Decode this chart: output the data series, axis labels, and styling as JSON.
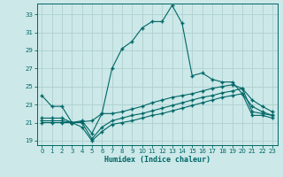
{
  "xlabel": "Humidex (Indice chaleur)",
  "bg_color": "#cce8e8",
  "grid_color": "#b0d0d0",
  "line_color": "#006666",
  "xlim": [
    -0.5,
    23.5
  ],
  "ylim": [
    18.5,
    34.2
  ],
  "yticks": [
    19,
    21,
    23,
    25,
    27,
    29,
    31,
    33
  ],
  "xticks": [
    0,
    1,
    2,
    3,
    4,
    5,
    6,
    7,
    8,
    9,
    10,
    11,
    12,
    13,
    14,
    15,
    16,
    17,
    18,
    19,
    20,
    21,
    22,
    23
  ],
  "line1_x": [
    0,
    1,
    2,
    3,
    4,
    5,
    6,
    7,
    8,
    9,
    10,
    11,
    12,
    13,
    14,
    15,
    16,
    17,
    18,
    19,
    20,
    21,
    22,
    23
  ],
  "line1_y": [
    24.0,
    22.8,
    22.8,
    21.0,
    21.2,
    19.8,
    22.0,
    27.0,
    29.2,
    30.0,
    31.5,
    32.2,
    32.2,
    34.0,
    32.0,
    26.2,
    26.5,
    25.8,
    25.5,
    25.5,
    24.2,
    22.8,
    22.2,
    21.8
  ],
  "line2_x": [
    0,
    1,
    2,
    3,
    5,
    6,
    7,
    8,
    9,
    10,
    11,
    12,
    13,
    14,
    15,
    16,
    17,
    18,
    19,
    20,
    21,
    22,
    23
  ],
  "line2_y": [
    21.5,
    21.5,
    21.5,
    21.0,
    21.2,
    22.0,
    22.0,
    22.2,
    22.5,
    22.8,
    23.2,
    23.5,
    23.8,
    24.0,
    24.2,
    24.5,
    24.8,
    25.0,
    25.2,
    24.8,
    23.5,
    22.8,
    22.2
  ],
  "line3_x": [
    0,
    1,
    2,
    3,
    4,
    5,
    6,
    7,
    8,
    9,
    10,
    11,
    12,
    13,
    14,
    15,
    16,
    17,
    18,
    19,
    20,
    21,
    22,
    23
  ],
  "line3_y": [
    21.2,
    21.2,
    21.2,
    21.0,
    21.0,
    19.2,
    20.5,
    21.2,
    21.5,
    21.8,
    22.0,
    22.3,
    22.6,
    22.9,
    23.2,
    23.5,
    23.8,
    24.0,
    24.3,
    24.5,
    24.8,
    22.2,
    22.0,
    21.8
  ],
  "line4_x": [
    0,
    1,
    2,
    3,
    4,
    5,
    6,
    7,
    8,
    9,
    10,
    11,
    12,
    13,
    14,
    15,
    16,
    17,
    18,
    19,
    20,
    21,
    22,
    23
  ],
  "line4_y": [
    21.0,
    21.0,
    21.0,
    21.0,
    20.5,
    19.0,
    20.0,
    20.8,
    21.0,
    21.2,
    21.5,
    21.8,
    22.0,
    22.3,
    22.6,
    22.9,
    23.2,
    23.5,
    23.8,
    24.0,
    24.2,
    21.8,
    21.8,
    21.5
  ]
}
